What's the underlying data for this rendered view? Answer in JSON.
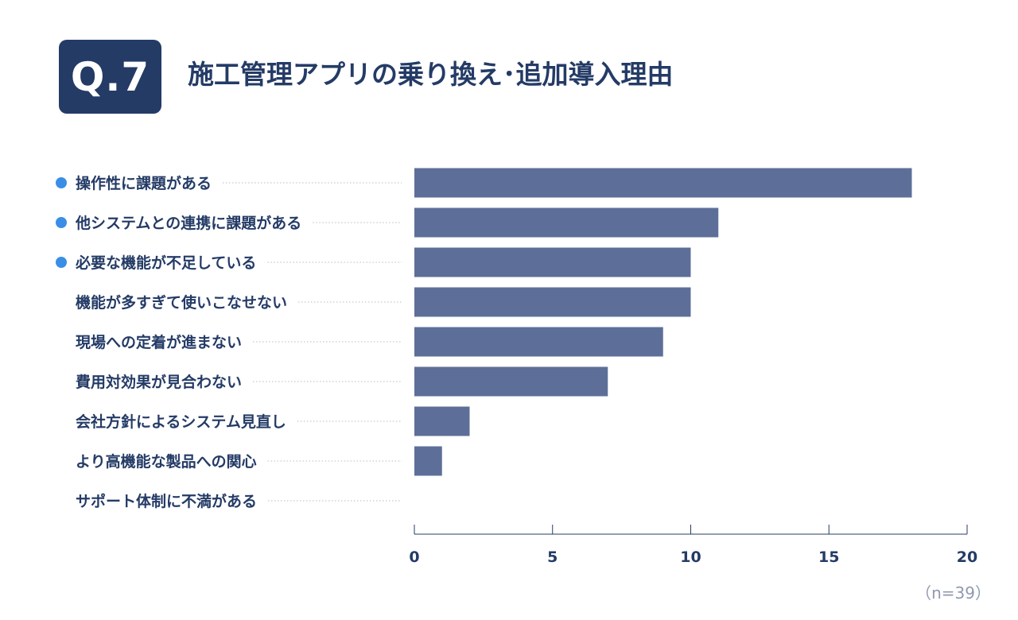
{
  "header": {
    "badge": "Q.7",
    "title": "施工管理アプリの乗り換え･追加導入理由"
  },
  "note": "（n=39）",
  "colors": {
    "bar": "#5d6f98",
    "text": "#243b66",
    "bullet": "#3a8ee6",
    "axis": "#243b66",
    "leader": "#b4bcc9"
  },
  "chart_data": {
    "type": "bar",
    "orientation": "horizontal",
    "categories": [
      "操作性に課題がある",
      "他システムとの連携に課題がある",
      "必要な機能が不足している",
      "機能が多すぎて使いこなせない",
      "現場への定着が進まない",
      "費用対効果が見合わない",
      "会社方針によるシステム見直し",
      "より高機能な製品への関心",
      "サポート体制に不満がある"
    ],
    "values": [
      18,
      11,
      10,
      10,
      9,
      7,
      2,
      1,
      0
    ],
    "highlighted": [
      true,
      true,
      true,
      false,
      false,
      false,
      false,
      false,
      false
    ],
    "xlim": [
      0,
      20
    ],
    "xticks": [
      0,
      5,
      10,
      15,
      20
    ],
    "grid": false
  }
}
